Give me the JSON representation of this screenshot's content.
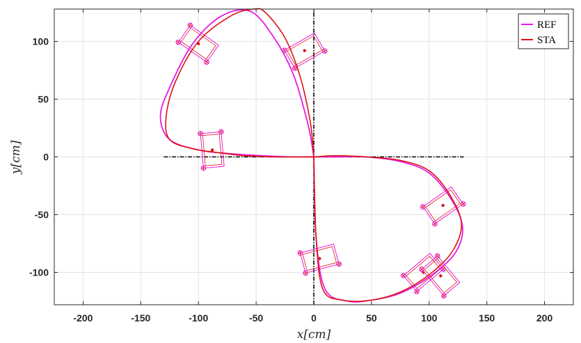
{
  "chart_data": {
    "type": "line",
    "xlabel": "x[cm]",
    "ylabel": "y[cm]",
    "xlim": [
      -225,
      225
    ],
    "ylim": [
      -128,
      128
    ],
    "xticks": [
      -200,
      -150,
      -100,
      -50,
      0,
      50,
      100,
      150,
      200
    ],
    "yticks": [
      -100,
      -50,
      0,
      50,
      100
    ],
    "grid": true,
    "legend_position": "top-right",
    "colors": {
      "REF": "#e619e6",
      "STA": "#dd1111",
      "axes": "#000000",
      "grid": "#e3e3e3"
    },
    "series": [
      {
        "name": "REF",
        "x": [
          0,
          -5,
          -18,
          -35,
          -55,
          -80,
          -105,
          -125,
          -133,
          -125,
          -100,
          -75,
          -45,
          -20,
          0,
          20,
          45,
          75,
          100,
          120,
          129,
          122,
          100,
          75,
          50,
          30,
          10,
          2,
          0
        ],
        "y": [
          0,
          28,
          72,
          104,
          126,
          122,
          98,
          60,
          35,
          15,
          6,
          3,
          1,
          0,
          0,
          0,
          0,
          -4,
          -14,
          -38,
          -62,
          -84,
          -104,
          -118,
          -124,
          -125,
          -115,
          -70,
          0
        ]
      },
      {
        "name": "STA",
        "x": [
          0,
          -3,
          -12,
          -25,
          -42,
          -52,
          -72,
          -100,
          -120,
          -128,
          -125,
          -105,
          -85,
          -60,
          -35,
          -15,
          0,
          18,
          45,
          75,
          100,
          118,
          128,
          120,
          100,
          75,
          50,
          25,
          8,
          2,
          0
        ],
        "y": [
          0,
          30,
          70,
          103,
          125,
          128,
          122,
          100,
          65,
          35,
          15,
          7,
          4,
          1,
          0,
          0,
          0,
          1,
          0,
          -3,
          -12,
          -33,
          -58,
          -82,
          -102,
          -117,
          -124,
          -124,
          -115,
          -70,
          0
        ]
      }
    ],
    "reference_axes": [
      {
        "x": [
          -130,
          130
        ],
        "y": [
          0,
          0
        ]
      },
      {
        "x": [
          0,
          0
        ],
        "y": [
          -128,
          128
        ]
      }
    ],
    "vehicle_markers": [
      {
        "center": [
          -100,
          98
        ],
        "angle": -35
      },
      {
        "center": [
          -8,
          92
        ],
        "angle": 30
      },
      {
        "center": [
          -88,
          6
        ],
        "angle": -85
      },
      {
        "center": [
          5,
          -88
        ],
        "angle": 15
      },
      {
        "center": [
          95,
          -100
        ],
        "angle": 40
      },
      {
        "center": [
          112,
          -42
        ],
        "angle": 35
      },
      {
        "center": [
          110,
          -103
        ],
        "angle": -50
      }
    ]
  }
}
